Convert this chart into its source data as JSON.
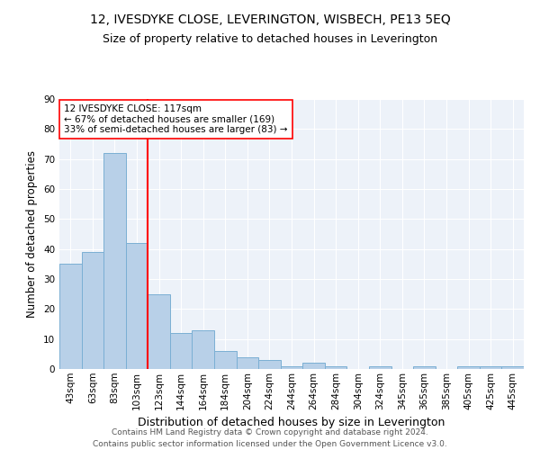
{
  "title": "12, IVESDYKE CLOSE, LEVERINGTON, WISBECH, PE13 5EQ",
  "subtitle": "Size of property relative to detached houses in Leverington",
  "xlabel": "Distribution of detached houses by size in Leverington",
  "ylabel": "Number of detached properties",
  "bar_labels": [
    "43sqm",
    "63sqm",
    "83sqm",
    "103sqm",
    "123sqm",
    "144sqm",
    "164sqm",
    "184sqm",
    "204sqm",
    "224sqm",
    "244sqm",
    "264sqm",
    "284sqm",
    "304sqm",
    "324sqm",
    "345sqm",
    "365sqm",
    "385sqm",
    "405sqm",
    "425sqm",
    "445sqm"
  ],
  "bar_values": [
    35,
    39,
    72,
    42,
    25,
    12,
    13,
    6,
    4,
    3,
    1,
    2,
    1,
    0,
    1,
    0,
    1,
    0,
    1,
    1,
    1
  ],
  "bar_color": "#b8d0e8",
  "bar_edge_color": "#7bafd4",
  "vline_x_idx": 4,
  "vline_color": "red",
  "annotation_text": "12 IVESDYKE CLOSE: 117sqm\n← 67% of detached houses are smaller (169)\n33% of semi-detached houses are larger (83) →",
  "annotation_box_color": "white",
  "annotation_box_edge": "red",
  "ylim": [
    0,
    90
  ],
  "yticks": [
    0,
    10,
    20,
    30,
    40,
    50,
    60,
    70,
    80,
    90
  ],
  "footnote": "Contains HM Land Registry data © Crown copyright and database right 2024.\nContains public sector information licensed under the Open Government Licence v3.0.",
  "title_fontsize": 10,
  "subtitle_fontsize": 9,
  "xlabel_fontsize": 9,
  "ylabel_fontsize": 8.5,
  "tick_fontsize": 7.5,
  "annotation_fontsize": 7.5,
  "footnote_fontsize": 6.5,
  "bg_color": "#edf2f9"
}
